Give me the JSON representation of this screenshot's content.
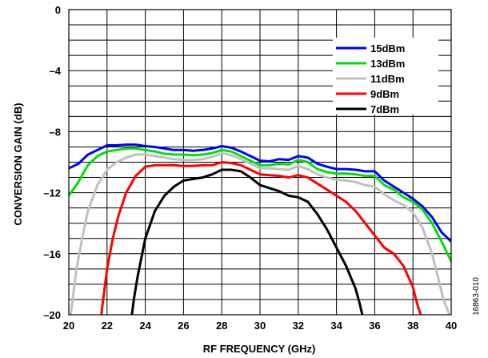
{
  "figure_id": "16863-010",
  "chart_data": {
    "type": "line",
    "title": "",
    "xlabel": "RF FREQUENCY (GHz)",
    "ylabel": "CONVERSION GAIN (dB)",
    "xlim": [
      20,
      40
    ],
    "ylim": [
      -20,
      0
    ],
    "x_ticks": [
      20,
      22,
      24,
      26,
      28,
      30,
      32,
      34,
      36,
      38,
      40
    ],
    "x_tick_labels": [
      "20",
      "22",
      "24",
      "26",
      "28",
      "30",
      "32",
      "34",
      "36",
      "38",
      "40"
    ],
    "y_ticks": [
      0,
      -4,
      -8,
      -12,
      -16,
      -20
    ],
    "y_tick_labels": [
      "0",
      "–4",
      "–8",
      "–12",
      "–16",
      "–20"
    ],
    "grid": true,
    "legend_position": "top-right",
    "series": [
      {
        "name": "15dBm",
        "color": "#0000ff",
        "x": [
          20,
          20.5,
          21,
          21.5,
          22,
          22.5,
          23,
          23.5,
          24,
          24.5,
          25,
          25.5,
          26,
          26.5,
          27,
          27.5,
          28,
          28.5,
          29,
          29.5,
          30,
          30.5,
          31,
          31.5,
          32,
          32.5,
          33,
          33.5,
          34,
          34.5,
          35,
          35.5,
          36,
          36.5,
          37,
          37.5,
          38,
          38.5,
          39,
          39.5,
          40
        ],
        "values": [
          -10.4,
          -10.1,
          -9.5,
          -9.2,
          -8.9,
          -8.9,
          -8.85,
          -8.85,
          -8.95,
          -9.0,
          -9.1,
          -9.2,
          -9.2,
          -9.25,
          -9.2,
          -9.1,
          -8.95,
          -9.05,
          -9.3,
          -9.6,
          -9.9,
          -9.95,
          -9.8,
          -9.85,
          -9.6,
          -9.7,
          -10.1,
          -10.3,
          -10.45,
          -10.45,
          -10.5,
          -10.6,
          -10.6,
          -11.2,
          -11.6,
          -12.0,
          -12.4,
          -12.9,
          -13.6,
          -14.6,
          -15.2
        ]
      },
      {
        "name": "13dBm",
        "color": "#00e000",
        "x": [
          20,
          20.5,
          21,
          21.5,
          22,
          22.5,
          23,
          23.5,
          24,
          24.5,
          25,
          25.5,
          26,
          26.5,
          27,
          27.5,
          28,
          28.5,
          29,
          29.5,
          30,
          30.5,
          31,
          31.5,
          32,
          32.5,
          33,
          33.5,
          34,
          34.5,
          35,
          35.5,
          36,
          36.5,
          37,
          37.5,
          38,
          38.5,
          39,
          39.5,
          40
        ],
        "values": [
          -12.2,
          -11.3,
          -10.2,
          -9.6,
          -9.3,
          -9.2,
          -9.1,
          -9.1,
          -9.2,
          -9.3,
          -9.45,
          -9.5,
          -9.5,
          -9.55,
          -9.5,
          -9.4,
          -9.2,
          -9.3,
          -9.6,
          -9.9,
          -10.2,
          -10.2,
          -10.1,
          -10.15,
          -9.85,
          -10.0,
          -10.45,
          -10.65,
          -10.75,
          -10.75,
          -10.8,
          -10.9,
          -10.9,
          -11.5,
          -11.8,
          -12.3,
          -12.6,
          -13.1,
          -14.0,
          -15.2,
          -16.5
        ]
      },
      {
        "name": "11dBm",
        "color": "#c0c0c0",
        "x": [
          20.1,
          20.2,
          20.4,
          20.7,
          21,
          21.5,
          22,
          22.5,
          23,
          23.5,
          24,
          24.5,
          25,
          25.5,
          26,
          26.5,
          27,
          27.5,
          28,
          28.5,
          29,
          29.5,
          30,
          30.5,
          31,
          31.5,
          32,
          32.5,
          33,
          33.5,
          34,
          34.5,
          35,
          35.5,
          36,
          36.5,
          37,
          37.5,
          38,
          38.5,
          39,
          39.3,
          39.6,
          39.9
        ],
        "values": [
          -20,
          -19.0,
          -17.0,
          -15.0,
          -13.2,
          -11.5,
          -10.5,
          -10.0,
          -9.7,
          -9.5,
          -9.5,
          -9.6,
          -9.7,
          -9.8,
          -9.85,
          -9.85,
          -9.8,
          -9.65,
          -9.4,
          -9.55,
          -9.8,
          -10.1,
          -10.4,
          -10.4,
          -10.45,
          -10.5,
          -10.25,
          -10.45,
          -10.8,
          -11.0,
          -11.15,
          -11.2,
          -11.3,
          -11.5,
          -11.6,
          -12.1,
          -12.5,
          -12.8,
          -13.3,
          -14.3,
          -16.0,
          -17.5,
          -19.0,
          -20
        ]
      },
      {
        "name": "9dBm",
        "color": "#ff0000",
        "x": [
          21.7,
          21.85,
          22,
          22.3,
          22.6,
          23,
          23.5,
          24,
          24.5,
          25,
          25.5,
          26,
          26.5,
          27,
          27.5,
          28,
          28.5,
          29,
          29.5,
          30,
          30.5,
          31,
          31.5,
          32,
          32.5,
          33,
          33.5,
          34,
          34.5,
          35,
          35.5,
          36,
          36.5,
          37,
          37.5,
          38,
          38.2,
          38.4
        ],
        "values": [
          -20,
          -18.5,
          -17.0,
          -15.0,
          -13.5,
          -12.0,
          -10.9,
          -10.3,
          -10.2,
          -10.2,
          -10.2,
          -10.25,
          -10.25,
          -10.2,
          -10.2,
          -10.0,
          -10.05,
          -10.2,
          -10.5,
          -10.8,
          -10.85,
          -10.9,
          -11.0,
          -10.85,
          -11.0,
          -11.4,
          -11.8,
          -12.2,
          -12.6,
          -13.2,
          -14.0,
          -14.8,
          -15.6,
          -16.0,
          -16.8,
          -18.2,
          -19.2,
          -20
        ]
      },
      {
        "name": "7dBm",
        "color": "#000000",
        "x": [
          23.3,
          23.4,
          23.6,
          24,
          24.5,
          25,
          25.5,
          26,
          26.5,
          27,
          27.5,
          28,
          28.5,
          29,
          29.5,
          30,
          30.5,
          31,
          31.5,
          32,
          32.5,
          33,
          33.5,
          34,
          34.5,
          35,
          35.2,
          35.35
        ],
        "values": [
          -20,
          -19.0,
          -17.5,
          -15.0,
          -13.2,
          -12.2,
          -11.6,
          -11.2,
          -11.1,
          -11.0,
          -10.8,
          -10.5,
          -10.5,
          -10.6,
          -11.0,
          -11.5,
          -11.7,
          -11.9,
          -12.2,
          -12.3,
          -12.6,
          -13.4,
          -14.4,
          -15.6,
          -16.8,
          -18.3,
          -19.2,
          -20
        ]
      }
    ]
  }
}
